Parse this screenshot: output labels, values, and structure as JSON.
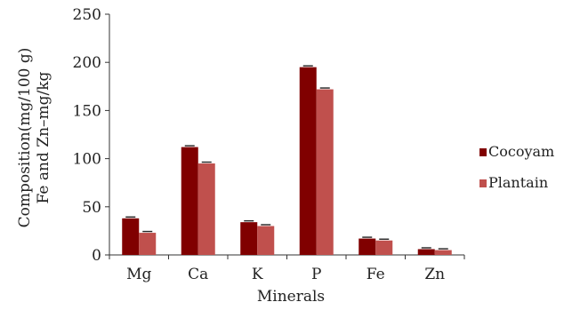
{
  "chart_data": {
    "type": "bar",
    "xlabel": "Minerals",
    "ylabel_line1": "Composition(mg/100 g)",
    "ylabel_line2": "Fe and Zn–mg/kg",
    "categories": [
      "Mg",
      "Ca",
      "K",
      "P",
      "Fe",
      "Zn"
    ],
    "series": [
      {
        "name": "Cocoyam",
        "values": [
          38,
          112,
          34,
          195,
          17,
          6
        ],
        "color": "#800000"
      },
      {
        "name": "Plantain",
        "values": [
          23,
          95,
          30,
          172,
          15,
          5
        ],
        "color": "#c0504d"
      }
    ],
    "ylim": [
      0,
      250
    ],
    "yticks": [
      0,
      50,
      100,
      150,
      200,
      250
    ],
    "legend_position": "right",
    "grid": false
  }
}
